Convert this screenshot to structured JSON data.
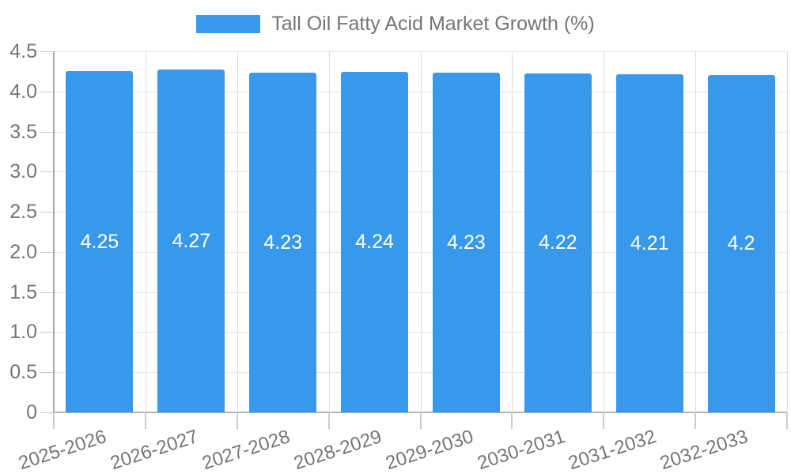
{
  "legend": {
    "label": "Tall Oil Fatty Acid Market Growth (%)",
    "position": "top-center"
  },
  "chart_data": {
    "type": "bar",
    "title": "Tall Oil Fatty Acid Market Growth (%)",
    "categories": [
      "2025-2026",
      "2026-2027",
      "2027-2028",
      "2028-2029",
      "2029-2030",
      "2030-2031",
      "2031-2032",
      "2032-2033"
    ],
    "values": [
      4.25,
      4.27,
      4.23,
      4.24,
      4.23,
      4.22,
      4.21,
      4.2
    ],
    "value_labels": [
      "4.25",
      "4.27",
      "4.23",
      "4.24",
      "4.23",
      "4.22",
      "4.21",
      "4.2"
    ],
    "xlabel": "",
    "ylabel": "",
    "ylim": [
      0,
      4.5
    ],
    "ytick_step": 0.5,
    "ytick_labels": [
      "0",
      "0.5",
      "1.0",
      "1.5",
      "2.0",
      "2.5",
      "3.0",
      "3.5",
      "4.0",
      "4.5"
    ],
    "grid": true,
    "legend_position": "top-center",
    "bar_color": "#3899EC",
    "value_label_color": "#FFFFFF",
    "axis_text_color": "#757575",
    "grid_color": "#E6E6E6",
    "vertical_grid_color": "#DDDDDD",
    "axis_line_color": "#A9A9A9",
    "zero_line_color": "#B3B3B3",
    "tick_color": "#CCCCCC"
  }
}
